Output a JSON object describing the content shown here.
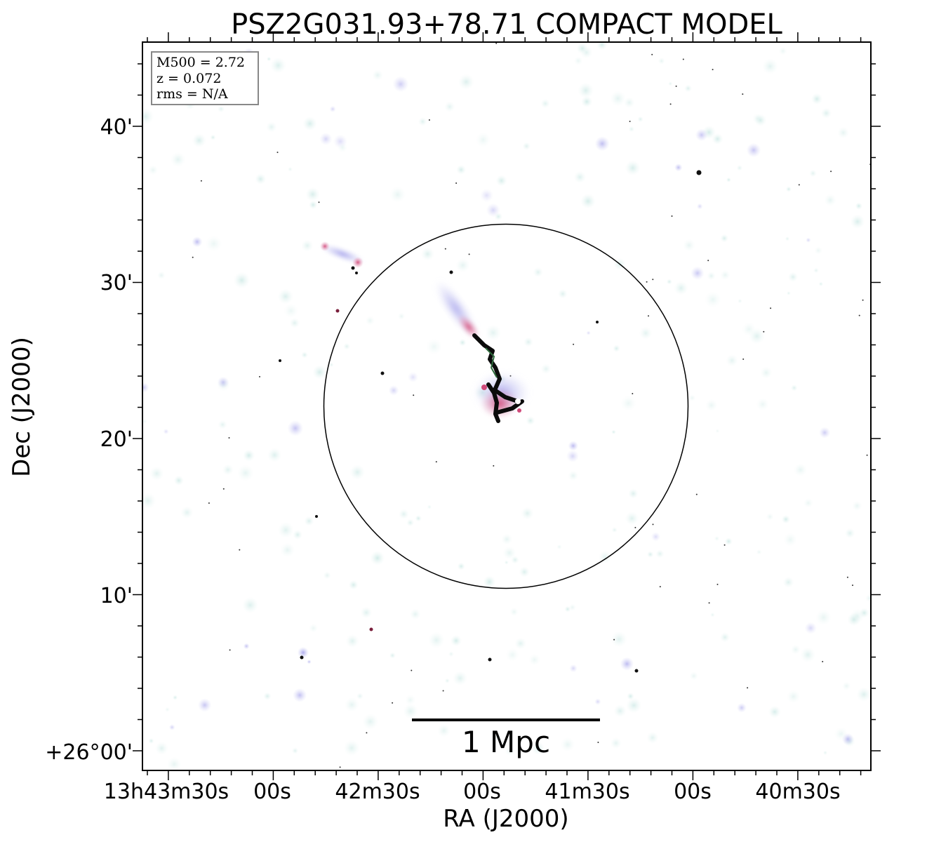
{
  "figure": {
    "title": "PSZ2G031.93+78.71 COMPACT MODEL",
    "x_axis_label": "RA (J2000)",
    "y_axis_label": "Dec (J2000)",
    "x_tick_labels": [
      "13h43m30s",
      "00s",
      "42m30s",
      "00s",
      "41m30s",
      "00s",
      "40m30s"
    ],
    "y_tick_labels": [
      "+26°00'",
      "10'",
      "20'",
      "30'",
      "40'"
    ],
    "info_box": {
      "line1": "M500 = 2.72",
      "line2": "z = 0.072",
      "line3": "rms = N/A"
    },
    "scale_bar_label": "1 Mpc",
    "colors": {
      "frame": "#000000",
      "faint_emission": "#cfe9e6",
      "mid_emission": "#b9b8ef",
      "bright_emission": "#d96a8e",
      "peak_emission": "#0a0a0a",
      "info_box_border": "#888888"
    }
  }
}
